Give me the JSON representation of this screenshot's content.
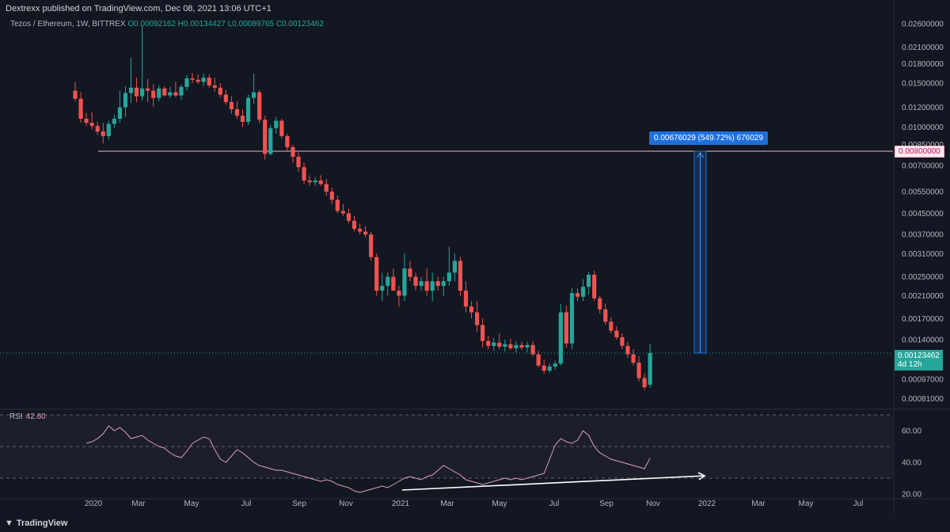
{
  "header": {
    "publisher": "Dextrexx published on TradingView.com, Dec 08, 2021 13:06 UTC+1"
  },
  "legend": {
    "symbol": "Tezos / Ethereum, 1W, BITTREX",
    "open": "O0.00092162",
    "high": "H0.00134427",
    "low": "L0.00089765",
    "close": "C0.00123462"
  },
  "measure": {
    "label": "0.00676029 (549.72%) 676029"
  },
  "price_tags": {
    "level": "0.00800000",
    "last": "0.00123462",
    "countdown": "4d 12h"
  },
  "rsi": {
    "label": "RSI",
    "value": "42.60"
  },
  "footer": {
    "brand": "TradingView"
  },
  "colors": {
    "background": "#131722",
    "up": "#26a69a",
    "down": "#ef5350",
    "rsi_line": "#e0a1b6",
    "level_line": "#f7b3c7",
    "measure": "#1e6fdc",
    "trend_line": "#ffffff"
  },
  "chart_data": [
    {
      "type": "candlestick",
      "title": "Tezos / Ethereum, 1W, BITTREX",
      "scale": "log",
      "ylim": [
        0.00075,
        0.028
      ],
      "y_ticks": [
        "0.02600000",
        "0.02100000",
        "0.01800000",
        "0.01500000",
        "0.01200000",
        "0.01000000",
        "0.00850000",
        "0.00700000",
        "0.00550000",
        "0.00450000",
        "0.00370000",
        "0.00310000",
        "0.00250000",
        "0.00210000",
        "0.00170000",
        "0.00140000",
        "0.00097000",
        "0.00081000"
      ],
      "x_ticks": [
        "2020",
        "Mar",
        "May",
        "Jul",
        "Sep",
        "Nov",
        "2021",
        "Mar",
        "May",
        "Jul",
        "Sep",
        "Nov",
        "2022",
        "Mar",
        "May",
        "Jul"
      ],
      "candles": [
        {
          "o": 0.014,
          "h": 0.0152,
          "l": 0.0127,
          "c": 0.013
        },
        {
          "o": 0.013,
          "h": 0.0138,
          "l": 0.0104,
          "c": 0.0108
        },
        {
          "o": 0.0108,
          "h": 0.0114,
          "l": 0.0101,
          "c": 0.0104
        },
        {
          "o": 0.0104,
          "h": 0.0115,
          "l": 0.0098,
          "c": 0.0101
        },
        {
          "o": 0.0101,
          "h": 0.0105,
          "l": 0.0093,
          "c": 0.0096
        },
        {
          "o": 0.0096,
          "h": 0.0104,
          "l": 0.0086,
          "c": 0.0092
        },
        {
          "o": 0.0092,
          "h": 0.0106,
          "l": 0.0089,
          "c": 0.0103
        },
        {
          "o": 0.0103,
          "h": 0.0112,
          "l": 0.0099,
          "c": 0.0108
        },
        {
          "o": 0.0108,
          "h": 0.014,
          "l": 0.0104,
          "c": 0.012
        },
        {
          "o": 0.012,
          "h": 0.0146,
          "l": 0.011,
          "c": 0.0137
        },
        {
          "o": 0.0137,
          "h": 0.019,
          "l": 0.0125,
          "c": 0.0144
        },
        {
          "o": 0.0144,
          "h": 0.0158,
          "l": 0.0126,
          "c": 0.0133
        },
        {
          "o": 0.0133,
          "h": 0.0255,
          "l": 0.0128,
          "c": 0.0143
        },
        {
          "o": 0.0143,
          "h": 0.0156,
          "l": 0.0126,
          "c": 0.014
        },
        {
          "o": 0.014,
          "h": 0.0149,
          "l": 0.0121,
          "c": 0.0131
        },
        {
          "o": 0.0131,
          "h": 0.0147,
          "l": 0.0127,
          "c": 0.0143
        },
        {
          "o": 0.0143,
          "h": 0.0146,
          "l": 0.0133,
          "c": 0.0134
        },
        {
          "o": 0.0134,
          "h": 0.0145,
          "l": 0.0131,
          "c": 0.0138
        },
        {
          "o": 0.0138,
          "h": 0.0152,
          "l": 0.0132,
          "c": 0.0134
        },
        {
          "o": 0.0134,
          "h": 0.0148,
          "l": 0.0129,
          "c": 0.0145
        },
        {
          "o": 0.0145,
          "h": 0.0162,
          "l": 0.014,
          "c": 0.0157
        },
        {
          "o": 0.0157,
          "h": 0.0165,
          "l": 0.015,
          "c": 0.0155
        },
        {
          "o": 0.0155,
          "h": 0.0163,
          "l": 0.0149,
          "c": 0.0152
        },
        {
          "o": 0.0152,
          "h": 0.0164,
          "l": 0.0146,
          "c": 0.0158
        },
        {
          "o": 0.0158,
          "h": 0.0163,
          "l": 0.0144,
          "c": 0.0147
        },
        {
          "o": 0.0147,
          "h": 0.0158,
          "l": 0.0139,
          "c": 0.0144
        },
        {
          "o": 0.0144,
          "h": 0.015,
          "l": 0.0132,
          "c": 0.0135
        },
        {
          "o": 0.0135,
          "h": 0.0141,
          "l": 0.0123,
          "c": 0.0126
        },
        {
          "o": 0.0126,
          "h": 0.0133,
          "l": 0.0113,
          "c": 0.0118
        },
        {
          "o": 0.0118,
          "h": 0.0127,
          "l": 0.0108,
          "c": 0.0111
        },
        {
          "o": 0.0111,
          "h": 0.0118,
          "l": 0.01,
          "c": 0.0105
        },
        {
          "o": 0.0105,
          "h": 0.0135,
          "l": 0.0102,
          "c": 0.0131
        },
        {
          "o": 0.0131,
          "h": 0.0164,
          "l": 0.0124,
          "c": 0.0138
        },
        {
          "o": 0.0138,
          "h": 0.0141,
          "l": 0.0104,
          "c": 0.0107
        },
        {
          "o": 0.0107,
          "h": 0.0111,
          "l": 0.0074,
          "c": 0.0078
        },
        {
          "o": 0.0078,
          "h": 0.0102,
          "l": 0.0077,
          "c": 0.0099
        },
        {
          "o": 0.0099,
          "h": 0.011,
          "l": 0.0094,
          "c": 0.0106
        },
        {
          "o": 0.0106,
          "h": 0.0108,
          "l": 0.009,
          "c": 0.0092
        },
        {
          "o": 0.0092,
          "h": 0.0094,
          "l": 0.008,
          "c": 0.0083
        },
        {
          "o": 0.0083,
          "h": 0.0085,
          "l": 0.0072,
          "c": 0.0076
        },
        {
          "o": 0.0076,
          "h": 0.0079,
          "l": 0.0066,
          "c": 0.0069
        },
        {
          "o": 0.0069,
          "h": 0.0072,
          "l": 0.0059,
          "c": 0.0061
        },
        {
          "o": 0.0061,
          "h": 0.0064,
          "l": 0.0058,
          "c": 0.006
        },
        {
          "o": 0.006,
          "h": 0.0063,
          "l": 0.0058,
          "c": 0.0061
        },
        {
          "o": 0.0061,
          "h": 0.0064,
          "l": 0.0058,
          "c": 0.0059
        },
        {
          "o": 0.0059,
          "h": 0.0062,
          "l": 0.0053,
          "c": 0.0055
        },
        {
          "o": 0.0055,
          "h": 0.0057,
          "l": 0.0049,
          "c": 0.0051
        },
        {
          "o": 0.0051,
          "h": 0.0053,
          "l": 0.0045,
          "c": 0.0046
        },
        {
          "o": 0.0046,
          "h": 0.0049,
          "l": 0.0044,
          "c": 0.0045
        },
        {
          "o": 0.0045,
          "h": 0.0047,
          "l": 0.0041,
          "c": 0.0042
        },
        {
          "o": 0.0042,
          "h": 0.0044,
          "l": 0.0038,
          "c": 0.0039
        },
        {
          "o": 0.0039,
          "h": 0.0041,
          "l": 0.0037,
          "c": 0.0038
        },
        {
          "o": 0.0038,
          "h": 0.004,
          "l": 0.0036,
          "c": 0.0037
        },
        {
          "o": 0.0037,
          "h": 0.0038,
          "l": 0.0029,
          "c": 0.003
        },
        {
          "o": 0.003,
          "h": 0.0031,
          "l": 0.0021,
          "c": 0.0022
        },
        {
          "o": 0.0022,
          "h": 0.0026,
          "l": 0.002,
          "c": 0.0023
        },
        {
          "o": 0.0023,
          "h": 0.0026,
          "l": 0.0021,
          "c": 0.0025
        },
        {
          "o": 0.0025,
          "h": 0.0027,
          "l": 0.0022,
          "c": 0.0022
        },
        {
          "o": 0.0022,
          "h": 0.0023,
          "l": 0.0019,
          "c": 0.0021
        },
        {
          "o": 0.0021,
          "h": 0.0031,
          "l": 0.002,
          "c": 0.0027
        },
        {
          "o": 0.0027,
          "h": 0.0029,
          "l": 0.0024,
          "c": 0.0025
        },
        {
          "o": 0.0025,
          "h": 0.0026,
          "l": 0.0022,
          "c": 0.0023
        },
        {
          "o": 0.0023,
          "h": 0.0025,
          "l": 0.0022,
          "c": 0.0024
        },
        {
          "o": 0.0024,
          "h": 0.0027,
          "l": 0.0021,
          "c": 0.0022
        },
        {
          "o": 0.0022,
          "h": 0.0026,
          "l": 0.002,
          "c": 0.0024
        },
        {
          "o": 0.0024,
          "h": 0.0025,
          "l": 0.0022,
          "c": 0.0023
        },
        {
          "o": 0.0023,
          "h": 0.0025,
          "l": 0.0021,
          "c": 0.0024
        },
        {
          "o": 0.0024,
          "h": 0.0033,
          "l": 0.0023,
          "c": 0.0026
        },
        {
          "o": 0.0026,
          "h": 0.0031,
          "l": 0.0024,
          "c": 0.0029
        },
        {
          "o": 0.0029,
          "h": 0.003,
          "l": 0.0021,
          "c": 0.0022
        },
        {
          "o": 0.0022,
          "h": 0.0024,
          "l": 0.0018,
          "c": 0.0019
        },
        {
          "o": 0.0019,
          "h": 0.002,
          "l": 0.0017,
          "c": 0.0018
        },
        {
          "o": 0.0018,
          "h": 0.002,
          "l": 0.0015,
          "c": 0.0016
        },
        {
          "o": 0.0016,
          "h": 0.0017,
          "l": 0.0013,
          "c": 0.00138
        },
        {
          "o": 0.00138,
          "h": 0.00145,
          "l": 0.00128,
          "c": 0.00132
        },
        {
          "o": 0.00132,
          "h": 0.00142,
          "l": 0.00126,
          "c": 0.00136
        },
        {
          "o": 0.00136,
          "h": 0.00148,
          "l": 0.00128,
          "c": 0.00131
        },
        {
          "o": 0.00131,
          "h": 0.0014,
          "l": 0.00125,
          "c": 0.00134
        },
        {
          "o": 0.00134,
          "h": 0.00141,
          "l": 0.00127,
          "c": 0.00129
        },
        {
          "o": 0.00129,
          "h": 0.00138,
          "l": 0.00124,
          "c": 0.00133
        },
        {
          "o": 0.00133,
          "h": 0.00137,
          "l": 0.00127,
          "c": 0.0013
        },
        {
          "o": 0.0013,
          "h": 0.00137,
          "l": 0.00124,
          "c": 0.00133
        },
        {
          "o": 0.00133,
          "h": 0.00138,
          "l": 0.0012,
          "c": 0.00122
        },
        {
          "o": 0.00122,
          "h": 0.00126,
          "l": 0.00108,
          "c": 0.0011
        },
        {
          "o": 0.0011,
          "h": 0.00116,
          "l": 0.00102,
          "c": 0.00105
        },
        {
          "o": 0.00105,
          "h": 0.00112,
          "l": 0.00103,
          "c": 0.00109
        },
        {
          "o": 0.00109,
          "h": 0.00115,
          "l": 0.00106,
          "c": 0.00112
        },
        {
          "o": 0.00112,
          "h": 0.00195,
          "l": 0.0011,
          "c": 0.0018
        },
        {
          "o": 0.0018,
          "h": 0.00192,
          "l": 0.0013,
          "c": 0.00135
        },
        {
          "o": 0.00135,
          "h": 0.00225,
          "l": 0.00128,
          "c": 0.00215
        },
        {
          "o": 0.00215,
          "h": 0.00225,
          "l": 0.002,
          "c": 0.00208
        },
        {
          "o": 0.00208,
          "h": 0.00245,
          "l": 0.002,
          "c": 0.00228
        },
        {
          "o": 0.00228,
          "h": 0.00262,
          "l": 0.00212,
          "c": 0.00255
        },
        {
          "o": 0.00255,
          "h": 0.00265,
          "l": 0.002,
          "c": 0.00205
        },
        {
          "o": 0.00205,
          "h": 0.0021,
          "l": 0.00178,
          "c": 0.00185
        },
        {
          "o": 0.00185,
          "h": 0.00195,
          "l": 0.0016,
          "c": 0.00165
        },
        {
          "o": 0.00165,
          "h": 0.00172,
          "l": 0.00148,
          "c": 0.00152
        },
        {
          "o": 0.00152,
          "h": 0.00158,
          "l": 0.0014,
          "c": 0.00143
        },
        {
          "o": 0.00143,
          "h": 0.00148,
          "l": 0.00128,
          "c": 0.00132
        },
        {
          "o": 0.00132,
          "h": 0.00137,
          "l": 0.00118,
          "c": 0.00122
        },
        {
          "o": 0.00122,
          "h": 0.00128,
          "l": 0.0011,
          "c": 0.00113
        },
        {
          "o": 0.00113,
          "h": 0.0012,
          "l": 0.00095,
          "c": 0.00098
        },
        {
          "o": 0.00098,
          "h": 0.00102,
          "l": 0.00088,
          "c": 0.0009
        },
        {
          "o": 0.00092162,
          "h": 0.00134427,
          "l": 0.00089765,
          "c": 0.00123462
        }
      ],
      "horizontal_level": 0.008,
      "annotations": [
        "0.00676029 (549.72%) 676029"
      ]
    },
    {
      "type": "line",
      "title": "RSI",
      "ylim": [
        18,
        72
      ],
      "y_ticks": [
        "60.00",
        "40.00",
        "20.00"
      ],
      "bands": [
        70,
        50,
        30
      ],
      "series": [
        {
          "name": "RSI",
          "values": [
            52,
            53,
            55,
            58,
            63,
            60,
            62,
            59,
            55,
            56,
            57,
            54,
            52,
            50,
            49,
            46,
            44,
            43,
            47,
            52,
            54,
            56,
            55,
            48,
            42,
            40,
            44,
            48,
            46,
            43,
            40,
            38,
            37,
            36,
            35,
            35,
            34,
            33,
            32,
            31,
            30,
            29,
            28,
            29,
            28,
            26,
            25,
            24,
            22,
            21,
            22,
            23,
            24,
            25,
            24,
            26,
            28,
            30,
            31,
            30,
            29,
            31,
            32,
            35,
            38,
            36,
            34,
            32,
            29,
            28,
            27,
            26,
            27,
            28,
            29,
            30,
            29,
            30,
            29,
            30,
            31,
            32,
            33,
            42,
            51,
            55,
            53,
            52,
            54,
            60,
            57,
            50,
            46,
            44,
            42,
            41,
            40,
            39,
            38,
            37,
            36,
            42.6
          ]
        }
      ]
    }
  ]
}
